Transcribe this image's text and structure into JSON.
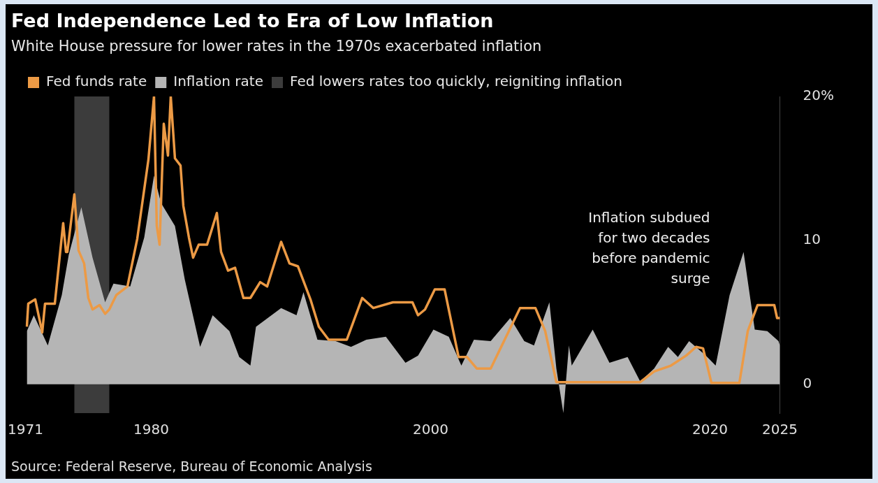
{
  "chart_data": {
    "type": "line",
    "title": "Fed Independence Led to Era of Low Inflation",
    "subtitle": "White House pressure for lower rates in the 1970s exacerbated inflation",
    "series": [
      {
        "name": "Inflation rate",
        "type": "area",
        "color": "#b5b5b5",
        "x": [
          1971.1,
          1971.6,
          1972.6,
          1973.6,
          1974.1,
          1975.0,
          1975.8,
          1976.7,
          1977.3,
          1978.5,
          1979.5,
          1980.2,
          1980.7,
          1981.7,
          1982.4,
          1983.5,
          1984.4,
          1985.6,
          1986.3,
          1987.1,
          1987.5,
          1989.3,
          1990.4,
          1990.9,
          1991.9,
          1993.2,
          1994.3,
          1995.4,
          1996.8,
          1998.2,
          1999.1,
          2000.2,
          2001.3,
          2002.2,
          2003.1,
          2004.3,
          2005.7,
          2006.7,
          2007.4,
          2008.5,
          2009.0,
          2009.5,
          2009.9,
          2010.1,
          2011.6,
          2012.8,
          2014.1,
          2015.0,
          2016.0,
          2017.0,
          2017.7,
          2018.5,
          2019.7,
          2020.4,
          2021.4,
          2022.4,
          2023.2,
          2024.1,
          2024.9,
          2025.0
        ],
        "values": [
          3.7,
          4.8,
          2.7,
          6.2,
          9.0,
          12.3,
          8.8,
          5.7,
          7.0,
          6.8,
          10.2,
          14.5,
          12.6,
          11.0,
          7.3,
          2.6,
          4.8,
          3.7,
          1.9,
          1.3,
          4.0,
          5.3,
          4.8,
          6.4,
          3.1,
          3.0,
          2.6,
          3.1,
          3.3,
          1.5,
          2.0,
          3.8,
          3.3,
          1.3,
          3.1,
          3.0,
          4.6,
          3.0,
          2.7,
          5.7,
          1.1,
          -2.0,
          2.7,
          1.3,
          3.8,
          1.5,
          1.9,
          0.2,
          1.1,
          2.6,
          1.9,
          3.0,
          2.0,
          1.3,
          6.2,
          9.2,
          3.8,
          3.7,
          3.0,
          2.7
        ]
      },
      {
        "name": "Fed funds rate",
        "type": "line",
        "color": "#ec9a45",
        "x": [
          1971.1,
          1971.2,
          1971.7,
          1972.2,
          1972.4,
          1973.1,
          1973.7,
          1973.9,
          1974.0,
          1974.5,
          1974.8,
          1975.2,
          1975.5,
          1975.8,
          1976.3,
          1976.7,
          1977.0,
          1977.5,
          1978.3,
          1979.0,
          1979.8,
          1980.2,
          1980.4,
          1980.6,
          1980.9,
          1981.2,
          1981.4,
          1981.7,
          1982.1,
          1982.3,
          1982.7,
          1983.0,
          1983.4,
          1984.0,
          1984.7,
          1985.0,
          1985.5,
          1986.0,
          1986.6,
          1987.1,
          1987.8,
          1988.3,
          1989.3,
          1989.9,
          1990.5,
          1991.4,
          1992.0,
          1992.7,
          1994.0,
          1995.1,
          1995.9,
          1997.3,
          1998.7,
          1999.1,
          1999.6,
          2000.3,
          2001.0,
          2002.0,
          2002.6,
          2003.3,
          2004.3,
          2006.4,
          2007.5,
          2008.2,
          2009.0,
          2015.0,
          2016.0,
          2017.2,
          2018.3,
          2019.0,
          2019.5,
          2020.1,
          2022.1,
          2022.7,
          2023.4,
          2024.6,
          2024.8,
          2025.0
        ],
        "values": [
          4.0,
          5.6,
          5.9,
          3.6,
          5.6,
          5.6,
          11.2,
          9.2,
          9.2,
          13.2,
          9.3,
          8.4,
          6.0,
          5.2,
          5.5,
          4.9,
          5.2,
          6.2,
          6.8,
          10.1,
          15.6,
          20.0,
          11.0,
          9.7,
          18.1,
          15.9,
          20.0,
          15.7,
          15.2,
          12.4,
          10.2,
          8.8,
          9.7,
          9.7,
          11.9,
          9.2,
          7.9,
          8.1,
          6.0,
          6.0,
          7.1,
          6.8,
          9.9,
          8.4,
          8.2,
          5.9,
          4.0,
          3.1,
          3.1,
          6.0,
          5.3,
          5.7,
          5.7,
          4.8,
          5.2,
          6.6,
          6.6,
          1.9,
          1.9,
          1.1,
          1.1,
          5.3,
          5.3,
          3.7,
          0.15,
          0.15,
          0.9,
          1.3,
          2.0,
          2.6,
          2.5,
          0.1,
          0.1,
          3.7,
          5.5,
          5.5,
          4.6,
          4.6
        ]
      }
    ],
    "bands": [
      {
        "axis": "x",
        "from": 1974.5,
        "to": 1977.0,
        "label": "Fed lowers rates too quickly, reigniting inflation",
        "color": "#3c3c3c"
      }
    ],
    "xlim": [
      1971,
      2025
    ],
    "xticks": [
      1971,
      1980,
      2000,
      2020,
      2025
    ],
    "ylim": [
      -2,
      20
    ],
    "yticks": [
      0,
      10,
      {
        "value": 20,
        "label": "20%"
      }
    ],
    "grid": false,
    "legend": "top left",
    "annotations": [
      "Inflation subdued for two decades before pandemic surge",
      "Source: Federal Reserve, Bureau of Economic Analysis"
    ]
  }
}
